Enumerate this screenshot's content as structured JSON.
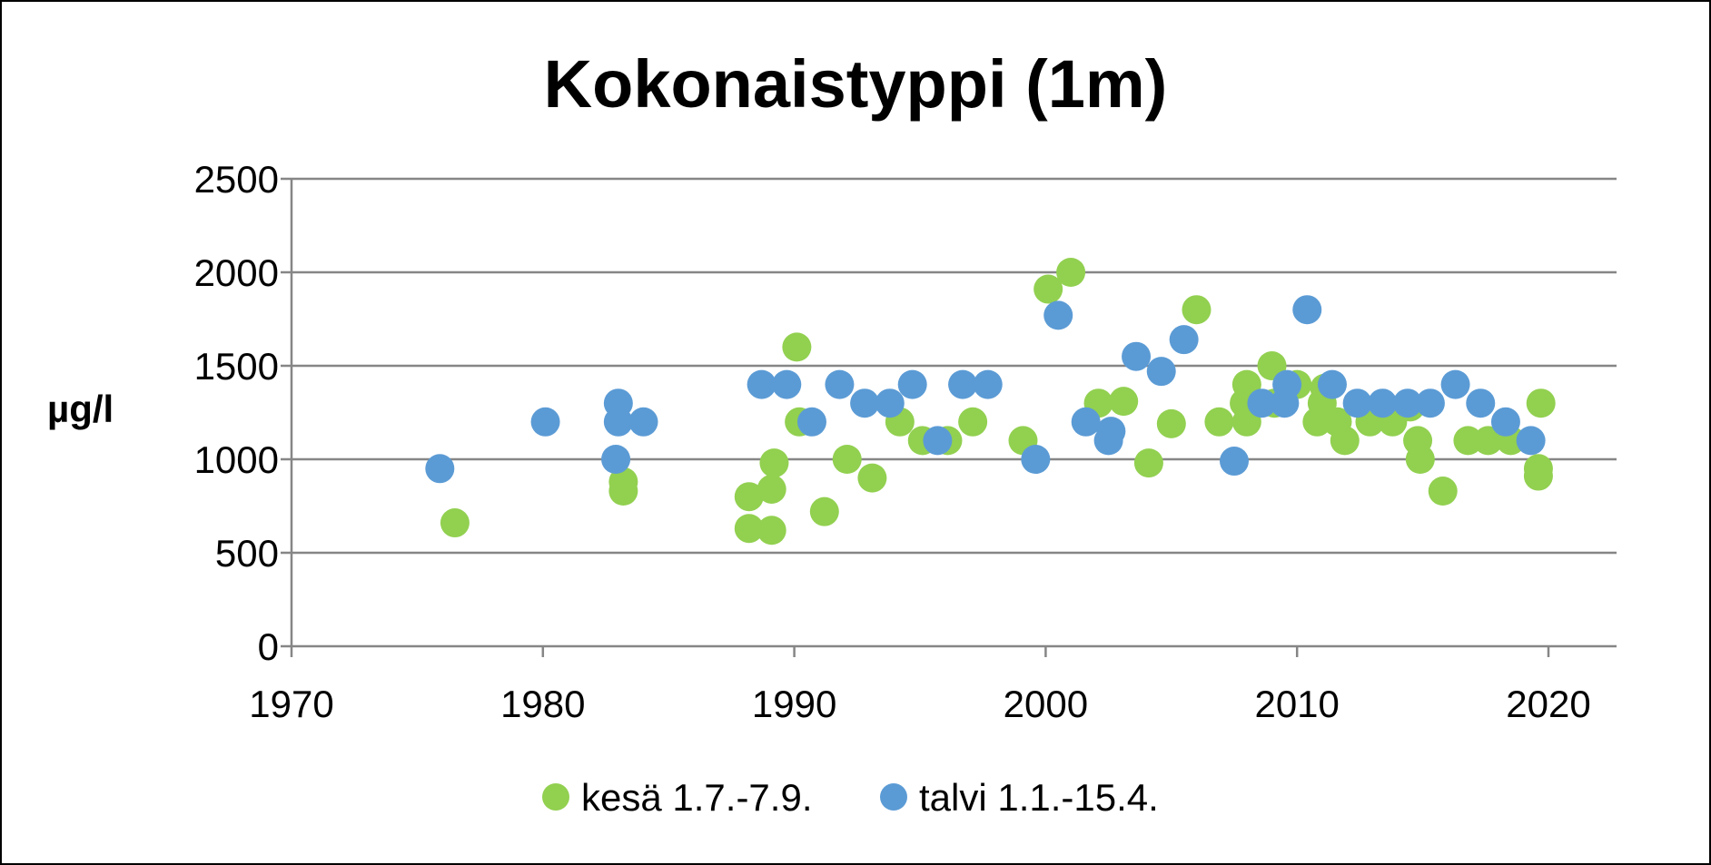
{
  "chart_data": {
    "type": "scatter",
    "title": "Kokonaistyppi (1m)",
    "xlabel": "",
    "ylabel": "µg/l",
    "xlim": [
      1970,
      2023
    ],
    "ylim": [
      0,
      2500
    ],
    "xticks": [
      1970,
      1980,
      1990,
      2000,
      2010,
      2020
    ],
    "yticks": [
      0,
      500,
      1000,
      1500,
      2000,
      2500
    ],
    "grid": true,
    "legend_position": "bottom",
    "series": [
      {
        "name": "kesä 1.7.-7.9.",
        "color": "#92D050",
        "points": [
          [
            1976.5,
            660
          ],
          [
            1983.2,
            880
          ],
          [
            1983.2,
            830
          ],
          [
            1988.2,
            800
          ],
          [
            1988.2,
            630
          ],
          [
            1989.1,
            620
          ],
          [
            1989.1,
            840
          ],
          [
            1989.2,
            980
          ],
          [
            1990.1,
            1600
          ],
          [
            1990.2,
            1200
          ],
          [
            1991.2,
            720
          ],
          [
            1992.1,
            1000
          ],
          [
            1993.1,
            900
          ],
          [
            1994.2,
            1200
          ],
          [
            1995.1,
            1100
          ],
          [
            1996.1,
            1100
          ],
          [
            1997.1,
            1200
          ],
          [
            1999.1,
            1100
          ],
          [
            2000.1,
            1910
          ],
          [
            2001.0,
            2000
          ],
          [
            2002.1,
            1300
          ],
          [
            2003.1,
            1310
          ],
          [
            2004.1,
            980
          ],
          [
            2005.0,
            1190
          ],
          [
            2006.0,
            1800
          ],
          [
            2006.9,
            1200
          ],
          [
            2007.9,
            1300
          ],
          [
            2008.0,
            1400
          ],
          [
            2008.0,
            1200
          ],
          [
            2009.0,
            1500
          ],
          [
            2009.1,
            1300
          ],
          [
            2010.0,
            1400
          ],
          [
            2010.8,
            1200
          ],
          [
            2011.0,
            1300
          ],
          [
            2011.1,
            1380
          ],
          [
            2011.6,
            1200
          ],
          [
            2011.9,
            1100
          ],
          [
            2012.9,
            1200
          ],
          [
            2013.8,
            1200
          ],
          [
            2014.5,
            1280
          ],
          [
            2014.8,
            1100
          ],
          [
            2014.9,
            1000
          ],
          [
            2015.8,
            830
          ],
          [
            2016.8,
            1100
          ],
          [
            2017.6,
            1100
          ],
          [
            2018.5,
            1100
          ],
          [
            2019.6,
            950
          ],
          [
            2019.6,
            910
          ],
          [
            2019.7,
            1300
          ]
        ]
      },
      {
        "name": "talvi 1.1.-15.4.",
        "color": "#5B9BD5",
        "points": [
          [
            1975.9,
            950
          ],
          [
            1980.1,
            1200
          ],
          [
            1982.9,
            1000
          ],
          [
            1983.0,
            1300
          ],
          [
            1983.0,
            1200
          ],
          [
            1984.0,
            1200
          ],
          [
            1988.7,
            1400
          ],
          [
            1989.7,
            1400
          ],
          [
            1990.7,
            1200
          ],
          [
            1991.8,
            1400
          ],
          [
            1992.8,
            1300
          ],
          [
            1993.8,
            1300
          ],
          [
            1994.7,
            1400
          ],
          [
            1995.7,
            1100
          ],
          [
            1996.7,
            1400
          ],
          [
            1997.7,
            1400
          ],
          [
            1999.6,
            1000
          ],
          [
            2000.5,
            1770
          ],
          [
            2001.6,
            1200
          ],
          [
            2002.5,
            1100
          ],
          [
            2002.6,
            1150
          ],
          [
            2003.6,
            1550
          ],
          [
            2004.6,
            1470
          ],
          [
            2005.5,
            1640
          ],
          [
            2007.5,
            990
          ],
          [
            2008.6,
            1300
          ],
          [
            2009.5,
            1300
          ],
          [
            2009.6,
            1400
          ],
          [
            2010.4,
            1800
          ],
          [
            2011.4,
            1400
          ],
          [
            2012.4,
            1300
          ],
          [
            2013.4,
            1300
          ],
          [
            2014.4,
            1300
          ],
          [
            2015.3,
            1300
          ],
          [
            2016.3,
            1400
          ],
          [
            2017.3,
            1300
          ],
          [
            2018.3,
            1200
          ],
          [
            2019.3,
            1100
          ]
        ]
      }
    ]
  }
}
